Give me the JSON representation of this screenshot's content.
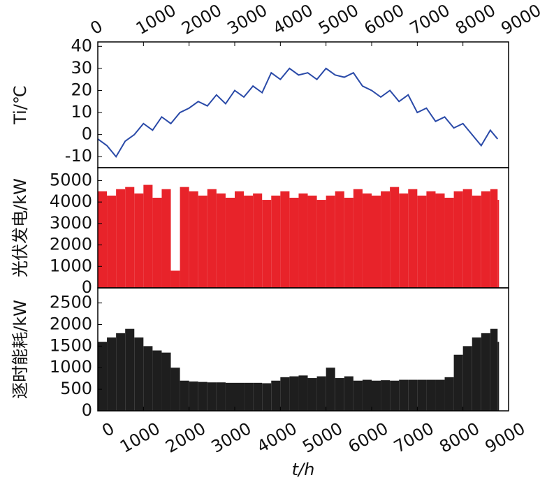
{
  "chart_data": [
    {
      "type": "line",
      "ylabel": "Ti/℃",
      "color": "#2a4aa8",
      "x": [
        0,
        200,
        400,
        600,
        800,
        1000,
        1200,
        1400,
        1600,
        1800,
        2000,
        2200,
        2400,
        2600,
        2800,
        3000,
        3200,
        3400,
        3600,
        3800,
        4000,
        4200,
        4400,
        4600,
        4800,
        5000,
        5200,
        5400,
        5600,
        5800,
        6000,
        6200,
        6400,
        6600,
        6800,
        7000,
        7200,
        7400,
        7600,
        7800,
        8000,
        8200,
        8400,
        8600,
        8760
      ],
      "values": [
        -2,
        -5,
        -10,
        -3,
        0,
        5,
        2,
        8,
        5,
        10,
        12,
        15,
        13,
        18,
        14,
        20,
        17,
        22,
        19,
        28,
        25,
        30,
        27,
        28,
        25,
        30,
        27,
        26,
        28,
        22,
        20,
        17,
        20,
        15,
        18,
        10,
        12,
        6,
        8,
        3,
        5,
        0,
        -5,
        2,
        -2
      ],
      "xlim": [
        0,
        9000
      ],
      "xticks": [
        0,
        1000,
        2000,
        3000,
        4000,
        5000,
        6000,
        7000,
        8000,
        9000
      ],
      "ylim": [
        -15,
        42
      ],
      "yticks": [
        -10,
        0,
        10,
        20,
        30,
        40
      ],
      "xaxis_position": "top"
    },
    {
      "type": "bar",
      "ylabel": "光伏发电/kW",
      "color": "#e8232a",
      "x": [
        0,
        200,
        400,
        600,
        800,
        1000,
        1200,
        1400,
        1600,
        1800,
        2000,
        2200,
        2400,
        2600,
        2800,
        3000,
        3200,
        3400,
        3600,
        3800,
        4000,
        4200,
        4400,
        4600,
        4800,
        5000,
        5200,
        5400,
        5600,
        5800,
        6000,
        6200,
        6400,
        6600,
        6800,
        7000,
        7200,
        7400,
        7600,
        7800,
        8000,
        8200,
        8400,
        8600,
        8760
      ],
      "values": [
        4500,
        4300,
        4600,
        4700,
        4400,
        4800,
        4200,
        4600,
        800,
        4700,
        4500,
        4300,
        4600,
        4400,
        4200,
        4500,
        4300,
        4400,
        4100,
        4300,
        4500,
        4200,
        4400,
        4300,
        4100,
        4300,
        4500,
        4200,
        4600,
        4400,
        4300,
        4500,
        4700,
        4400,
        4600,
        4300,
        4500,
        4400,
        4200,
        4500,
        4600,
        4300,
        4500,
        4600,
        4100
      ],
      "xlim": [
        0,
        9000
      ],
      "ylim": [
        0,
        5600
      ],
      "yticks": [
        0,
        1000,
        2000,
        3000,
        4000,
        5000
      ]
    },
    {
      "type": "bar",
      "ylabel": "逐时能耗/kW",
      "xlabel": "t/h",
      "color": "#1e1e1e",
      "x": [
        0,
        200,
        400,
        600,
        800,
        1000,
        1200,
        1400,
        1600,
        1800,
        2000,
        2200,
        2400,
        2600,
        2800,
        3000,
        3200,
        3400,
        3600,
        3800,
        4000,
        4200,
        4400,
        4600,
        4800,
        5000,
        5200,
        5400,
        5600,
        5800,
        6000,
        6200,
        6400,
        6600,
        6800,
        7000,
        7200,
        7400,
        7600,
        7800,
        8000,
        8200,
        8400,
        8600,
        8760
      ],
      "values": [
        1600,
        1700,
        1800,
        1900,
        1700,
        1500,
        1400,
        1350,
        1000,
        700,
        680,
        670,
        660,
        660,
        650,
        650,
        650,
        650,
        640,
        700,
        780,
        800,
        820,
        760,
        800,
        1000,
        760,
        800,
        700,
        720,
        700,
        710,
        700,
        720,
        720,
        720,
        720,
        720,
        780,
        1300,
        1500,
        1700,
        1800,
        1900,
        1600
      ],
      "xlim": [
        0,
        9000
      ],
      "xticks": [
        0,
        1000,
        2000,
        3000,
        4000,
        5000,
        6000,
        7000,
        8000,
        9000
      ],
      "ylim": [
        0,
        2850
      ],
      "yticks": [
        0,
        500,
        1000,
        1500,
        2000,
        2500
      ],
      "xaxis_position": "bottom"
    }
  ]
}
